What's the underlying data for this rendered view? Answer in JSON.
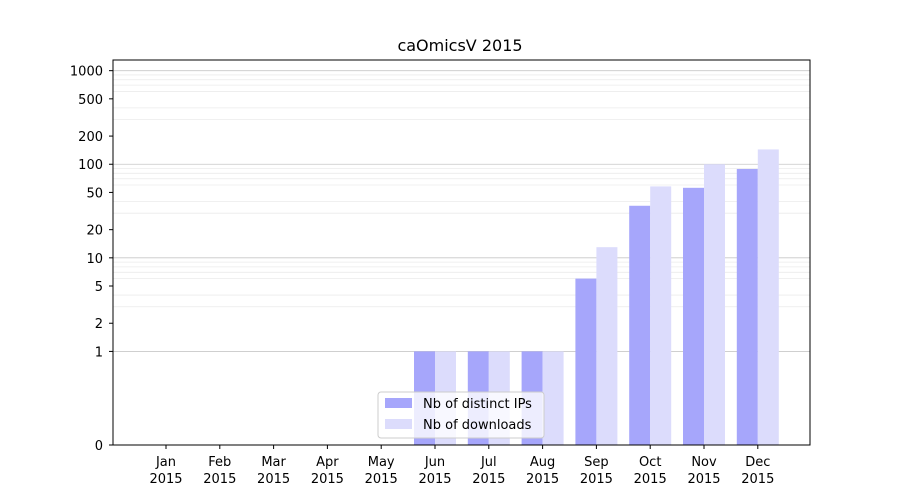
{
  "chart_data": {
    "type": "bar",
    "title": "caOmicsV 2015",
    "xlabel": "",
    "ylabel": "",
    "y_scale": "symlog",
    "ylim": [
      0,
      1300
    ],
    "y_ticks": [
      0,
      1,
      2,
      5,
      10,
      20,
      50,
      100,
      200,
      500,
      1000
    ],
    "y_tick_labels": [
      "0",
      "1",
      "2",
      "5",
      "10",
      "20",
      "50",
      "100",
      "200",
      "500",
      "1000"
    ],
    "grid": "horizontal major and minor lines",
    "legend_position": "lower-center",
    "categories": [
      [
        "Jan",
        "2015"
      ],
      [
        "Feb",
        "2015"
      ],
      [
        "Mar",
        "2015"
      ],
      [
        "Apr",
        "2015"
      ],
      [
        "May",
        "2015"
      ],
      [
        "Jun",
        "2015"
      ],
      [
        "Jul",
        "2015"
      ],
      [
        "Aug",
        "2015"
      ],
      [
        "Sep",
        "2015"
      ],
      [
        "Oct",
        "2015"
      ],
      [
        "Nov",
        "2015"
      ],
      [
        "Dec",
        "2015"
      ]
    ],
    "series": [
      {
        "name": "Nb of distinct IPs",
        "color": "#a6a6fb",
        "values": [
          0,
          0,
          0,
          0,
          0,
          1,
          1,
          1,
          6,
          36,
          56,
          89
        ]
      },
      {
        "name": "Nb of downloads",
        "color": "#dcdcfc",
        "values": [
          0,
          0,
          0,
          0,
          0,
          1,
          1,
          1,
          13,
          58,
          100,
          144
        ]
      }
    ]
  }
}
